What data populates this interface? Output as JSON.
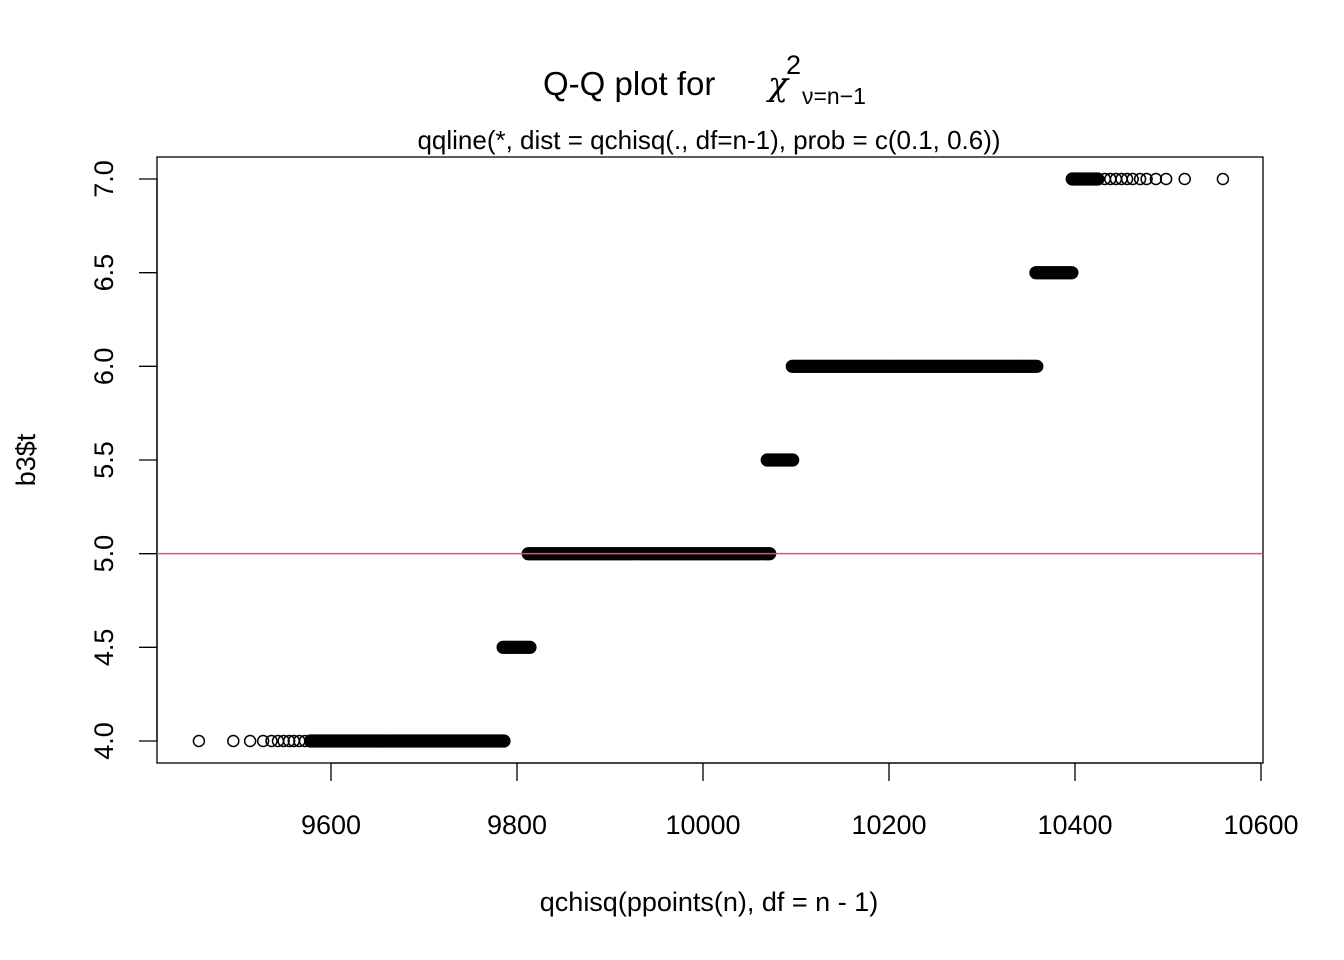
{
  "chart_data": {
    "type": "scatter",
    "title": {
      "prefix": "Q-Q plot for",
      "symbol": "χ",
      "superscript": "2",
      "subscript": "ν=n−1"
    },
    "subtitle": "qqline(*, dist = qchisq(., df=n-1), prob = c(0.1, 0.6))",
    "xlabel": "qchisq(ppoints(n), df = n - 1)",
    "ylabel": "b3$t",
    "xlim": [
      9400,
      10600
    ],
    "ylim": [
      3.9,
      7.1
    ],
    "x_ticks": [
      9600,
      9800,
      10000,
      10200,
      10400,
      10600
    ],
    "x_tick_labels": [
      "9600",
      "9800",
      "10000",
      "10200",
      "10400",
      "10600"
    ],
    "y_ticks": [
      4.0,
      4.5,
      5.0,
      5.5,
      6.0,
      6.5,
      7.0
    ],
    "y_tick_labels": [
      "4.0",
      "4.5",
      "5.0",
      "5.5",
      "6.0",
      "6.5",
      "7.0"
    ],
    "grid": false,
    "marker": "open-circle",
    "point_color": "#000000",
    "groups": [
      {
        "y": 4.0,
        "sparse_x": [
          9458,
          9495,
          9513,
          9527,
          9536,
          9543,
          9549,
          9555,
          9560,
          9566,
          9572,
          9578
        ],
        "dense_x": [
          9578,
          9787
        ]
      },
      {
        "y": 4.5,
        "sparse_x": [],
        "dense_x": [
          9785,
          9815
        ]
      },
      {
        "y": 5.0,
        "sparse_x": [],
        "dense_x": [
          9812,
          10072
        ]
      },
      {
        "y": 5.5,
        "sparse_x": [],
        "dense_x": [
          10069,
          10098
        ]
      },
      {
        "y": 6.0,
        "sparse_x": [],
        "dense_x": [
          10096,
          10360
        ]
      },
      {
        "y": 6.5,
        "sparse_x": [],
        "dense_x": [
          10358,
          10398
        ]
      },
      {
        "y": 7.0,
        "sparse_x": [
          10425,
          10432,
          10438,
          10444,
          10450,
          10456,
          10462,
          10470,
          10477,
          10487,
          10498,
          10518,
          10559
        ],
        "dense_x": [
          10397,
          10425
        ]
      }
    ],
    "reference_line": {
      "type": "horizontal",
      "y": 5.0,
      "color": "#DF536B"
    }
  }
}
